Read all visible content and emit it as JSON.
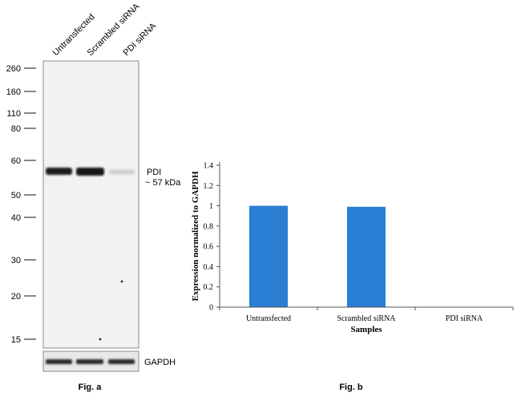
{
  "fig_a": {
    "caption": "Fig. a",
    "lanes": [
      "Untransfected",
      "Scrambled siRNA",
      "PDI siRNA"
    ],
    "markers": [
      "260",
      "160",
      "110",
      "80",
      "60",
      "50",
      "40",
      "30",
      "20",
      "15"
    ],
    "band_label": "PDI",
    "band_size": "~ 57 kDa",
    "loading_label": "GAPDH"
  },
  "fig_b": {
    "caption": "Fig. b"
  },
  "chart_data": {
    "type": "bar",
    "categories": [
      "Untransfected",
      "Scrambled siRNA",
      "PDI siRNA"
    ],
    "values": [
      1.0,
      0.99,
      0.0
    ],
    "xlabel": "Samples",
    "ylabel": "Expression normalized to GAPDH",
    "ylim": [
      0,
      1.4
    ],
    "yticks": [
      "0",
      "0.2",
      "0.4",
      "0.6",
      "0.8",
      "1",
      "1.2",
      "1.4"
    ],
    "bar_color": "#2a7fd4",
    "grid": false
  }
}
